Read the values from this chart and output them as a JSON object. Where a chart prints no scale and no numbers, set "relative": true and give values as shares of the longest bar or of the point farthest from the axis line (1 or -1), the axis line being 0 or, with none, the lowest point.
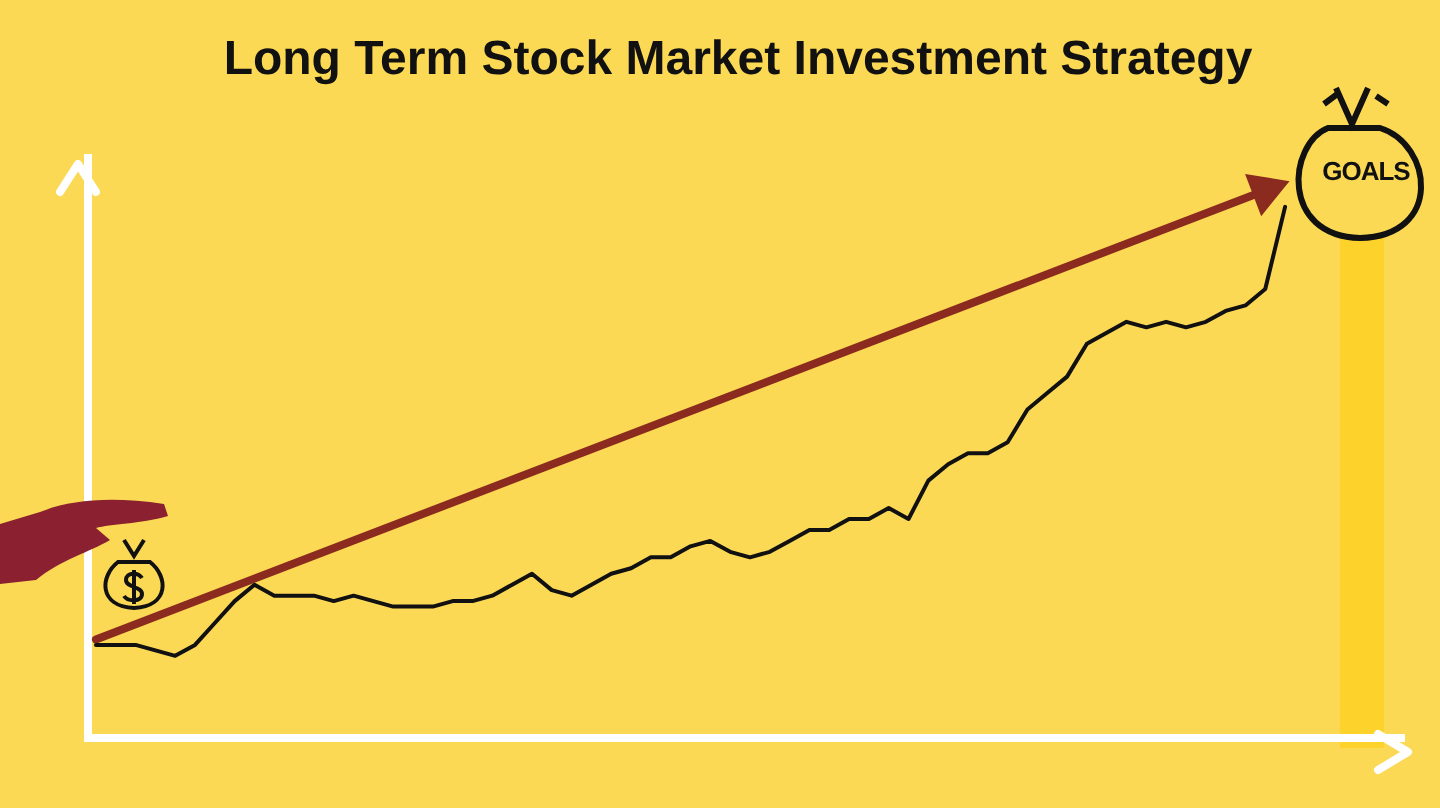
{
  "chart_data": {
    "type": "line",
    "title": "Long Term Stock Market Investment Strategy",
    "relative": true,
    "categories": [
      null,
      null,
      null,
      null,
      null,
      null,
      null,
      null,
      null,
      null,
      null,
      null,
      null,
      null,
      null,
      null,
      null,
      null,
      null,
      null,
      null,
      null,
      null,
      null,
      null,
      null,
      null,
      null,
      null,
      null,
      null,
      null,
      null,
      null,
      null,
      null,
      null,
      null,
      null,
      null,
      null,
      null,
      null,
      null,
      null,
      null,
      null,
      null,
      null,
      null,
      null,
      null,
      null,
      null,
      null,
      null,
      null,
      null,
      null,
      null,
      null
    ],
    "series": [
      {
        "color": "#111111",
        "values": [
          0.17,
          0.17,
          0.17,
          0.16,
          0.15,
          0.17,
          0.21,
          0.25,
          0.28,
          0.26,
          0.26,
          0.26,
          0.25,
          0.26,
          0.25,
          0.24,
          0.24,
          0.24,
          0.25,
          0.25,
          0.26,
          0.28,
          0.3,
          0.27,
          0.26,
          0.28,
          0.3,
          0.31,
          0.33,
          0.33,
          0.35,
          0.36,
          0.34,
          0.33,
          0.34,
          0.36,
          0.38,
          0.38,
          0.4,
          0.4,
          0.42,
          0.4,
          0.47,
          0.5,
          0.52,
          0.52,
          0.54,
          0.6,
          0.63,
          0.66,
          0.72,
          0.74,
          0.76,
          0.75,
          0.76,
          0.75,
          0.76,
          0.78,
          0.79,
          0.82,
          0.97
        ]
      },
      {
        "type": "line",
        "color": "#8b2a1e",
        "values": [
          0.18,
          null,
          null,
          null,
          null,
          null,
          null,
          null,
          null,
          null,
          null,
          null,
          null,
          null,
          null,
          null,
          null,
          null,
          null,
          null,
          null,
          null,
          null,
          null,
          null,
          null,
          null,
          null,
          null,
          null,
          null,
          null,
          null,
          null,
          null,
          null,
          null,
          null,
          null,
          null,
          null,
          null,
          null,
          null,
          null,
          null,
          null,
          null,
          null,
          null,
          null,
          null,
          null,
          null,
          null,
          null,
          null,
          null,
          null,
          1,
          null
        ]
      }
    ],
    "annotations": [
      "GOALS"
    ]
  }
}
